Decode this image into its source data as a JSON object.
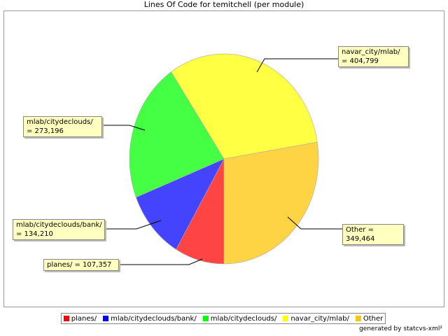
{
  "chart_data": {
    "type": "pie",
    "title": "Lines Of Code for temitchell (per module)",
    "categories": [
      "planes/",
      "mlab/citydeclouds/bank/",
      "mlab/citydeclouds/",
      "navar_city/mlab/",
      "Other"
    ],
    "values": [
      107357,
      134210,
      273196,
      404799,
      349464
    ],
    "value_labels": [
      "planes/ = 107,357",
      "mlab/citydeclouds/bank/ = 134,210",
      "mlab/citydeclouds/ = 273,196",
      "navar_city/mlab/ = 404,799",
      "Other = 349,464"
    ],
    "colors": [
      "#ff4444",
      "#4444ff",
      "#44ff44",
      "#ffff44",
      "#ffd444"
    ],
    "legend_colors": [
      "#ff0000",
      "#0000ff",
      "#00ff00",
      "#ffff00",
      "#ffc800"
    ],
    "footer": "generated by statcvs-xml²"
  }
}
